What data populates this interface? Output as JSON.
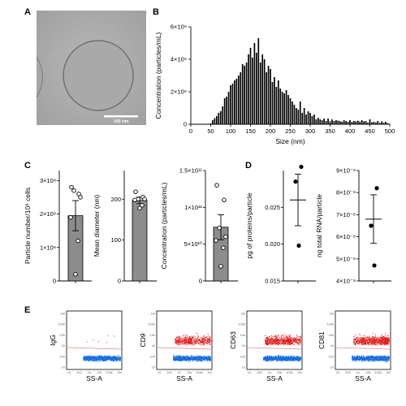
{
  "panels": {
    "A": {
      "label": "A",
      "scale_bar": "100 nm"
    },
    "B": {
      "label": "B"
    },
    "C": {
      "label": "C"
    },
    "D": {
      "label": "D"
    },
    "E": {
      "label": "E"
    }
  },
  "chart_data": [
    {
      "id": "B",
      "type": "bar",
      "xlabel": "Size (nm)",
      "ylabel": "Concentration (particles/mL)",
      "xlim": [
        0,
        500
      ],
      "ylim": [
        0,
        6000000000
      ],
      "xticks": [
        "0",
        "50",
        "100",
        "150",
        "200",
        "250",
        "300",
        "350",
        "400",
        "450",
        "500"
      ],
      "yticks": [
        "0",
        "2×10⁹",
        "4×10⁹",
        "6×10⁹"
      ],
      "x": [
        50,
        55,
        60,
        65,
        70,
        75,
        80,
        85,
        90,
        95,
        100,
        105,
        110,
        115,
        120,
        125,
        130,
        135,
        140,
        145,
        150,
        155,
        160,
        165,
        170,
        175,
        180,
        185,
        190,
        195,
        200,
        205,
        210,
        215,
        220,
        225,
        230,
        235,
        240,
        245,
        250,
        255,
        260,
        265,
        270,
        275,
        280,
        285,
        290,
        295,
        300,
        305,
        310,
        315,
        320,
        325,
        330,
        335,
        340,
        345,
        350,
        355,
        360,
        365,
        370,
        375,
        380,
        385,
        390,
        395,
        400,
        405,
        410,
        415,
        420,
        425,
        430,
        435,
        440,
        445,
        450,
        455,
        460,
        465,
        470,
        475,
        480,
        485,
        490,
        495,
        500
      ],
      "values": [
        50000000,
        250000000,
        380000000,
        500000000,
        700000000,
        800000000,
        1100000000,
        1600000000,
        1700000000,
        2000000000,
        2400000000,
        2500000000,
        2700000000,
        2800000000,
        3000000000,
        3200000000,
        3700000000,
        3600000000,
        3800000000,
        4300000000,
        4700000000,
        4100000000,
        5000000000,
        4400000000,
        5300000000,
        3800000000,
        4300000000,
        4000000000,
        3200000000,
        3600000000,
        3400000000,
        2600000000,
        2900000000,
        2300000000,
        2700000000,
        2200000000,
        2000000000,
        1900000000,
        2100000000,
        1800000000,
        1600000000,
        1400000000,
        1200000000,
        1000000000,
        900000000,
        1400000000,
        700000000,
        1000000000,
        600000000,
        800000000,
        700000000,
        500000000,
        600000000,
        300000000,
        400000000,
        300000000,
        250000000,
        350000000,
        200000000,
        350000000,
        180000000,
        300000000,
        200000000,
        250000000,
        220000000,
        200000000,
        150000000,
        250000000,
        200000000,
        150000000,
        250000000,
        150000000,
        200000000,
        180000000,
        220000000,
        160000000,
        250000000,
        180000000,
        200000000,
        100000000,
        300000000,
        120000000,
        150000000,
        100000000,
        200000000,
        80000000,
        180000000,
        90000000,
        150000000,
        60000000,
        30000000
      ]
    },
    {
      "id": "C1",
      "type": "bar",
      "ylabel": "Particle number/10⁶ cells",
      "ylim": [
        0,
        330000000
      ],
      "yticks": [
        "0",
        "1×10⁸",
        "2×10⁸",
        "3×10⁸"
      ],
      "mean": 195000000,
      "sem": 45000000,
      "points": [
        280000000,
        260000000,
        270000000,
        250000000,
        190000000,
        120000000,
        20000000
      ]
    },
    {
      "id": "C2",
      "type": "bar",
      "ylabel": "Mean diameter (nm)",
      "ylim": [
        0,
        270
      ],
      "yticks": [
        "0",
        "100",
        "200"
      ],
      "mean": 197,
      "sem": 8,
      "points": [
        218,
        205,
        200,
        200,
        198,
        185,
        178
      ]
    },
    {
      "id": "C3",
      "type": "bar",
      "ylabel": "Concentration (particles/mL)",
      "ylim": [
        0,
        150000000000
      ],
      "yticks": [
        "0",
        "5×10¹⁰",
        "1×10¹¹",
        "1.5×10¹¹"
      ],
      "mean": 73000000000,
      "sem": 17000000000,
      "points": [
        130000000000,
        110000000000,
        72000000000,
        60000000000,
        55000000000,
        45000000000,
        20000000000
      ]
    },
    {
      "id": "D1",
      "type": "scatter",
      "ylabel": "pg of proteins/particle",
      "ylim": [
        0.015,
        0.03
      ],
      "yticks": [
        "0.015",
        "0.020",
        "0.025"
      ],
      "mean": 0.026,
      "sem": 0.0035,
      "points": [
        0.0305,
        0.0285,
        0.0198
      ]
    },
    {
      "id": "D2",
      "type": "scatter",
      "ylabel": "ng total RNA/particle",
      "ylim": [
        4e-08,
        9e-08
      ],
      "yticks": [
        "4×10⁻⁸",
        "5×10⁻⁸",
        "6×10⁻⁸",
        "7×10⁻⁸",
        "8×10⁻⁸",
        "9×10⁻⁸"
      ],
      "mean": 6.8e-08,
      "sem": 1.1e-08,
      "points": [
        8.2e-08,
        6.5e-08,
        4.7e-08
      ]
    },
    {
      "id": "E",
      "type": "scatter",
      "xlabel": "SS-A",
      "plots": [
        {
          "ylabel": "IgG",
          "red_count": 6
        },
        {
          "ylabel": "CD9",
          "red_count": 520
        },
        {
          "ylabel": "CD63",
          "red_count": 620
        },
        {
          "ylabel": "CD81",
          "red_count": 700
        }
      ],
      "xticks": [
        "10",
        "100",
        "1k",
        "10k",
        "100k",
        "1M"
      ],
      "yticks": [
        "1M",
        "100k",
        "10k",
        "1k",
        "100",
        "10"
      ],
      "colors": {
        "positive": "#e32020",
        "negative": "#1a6fe0",
        "gate": "#e58a8a"
      }
    }
  ]
}
